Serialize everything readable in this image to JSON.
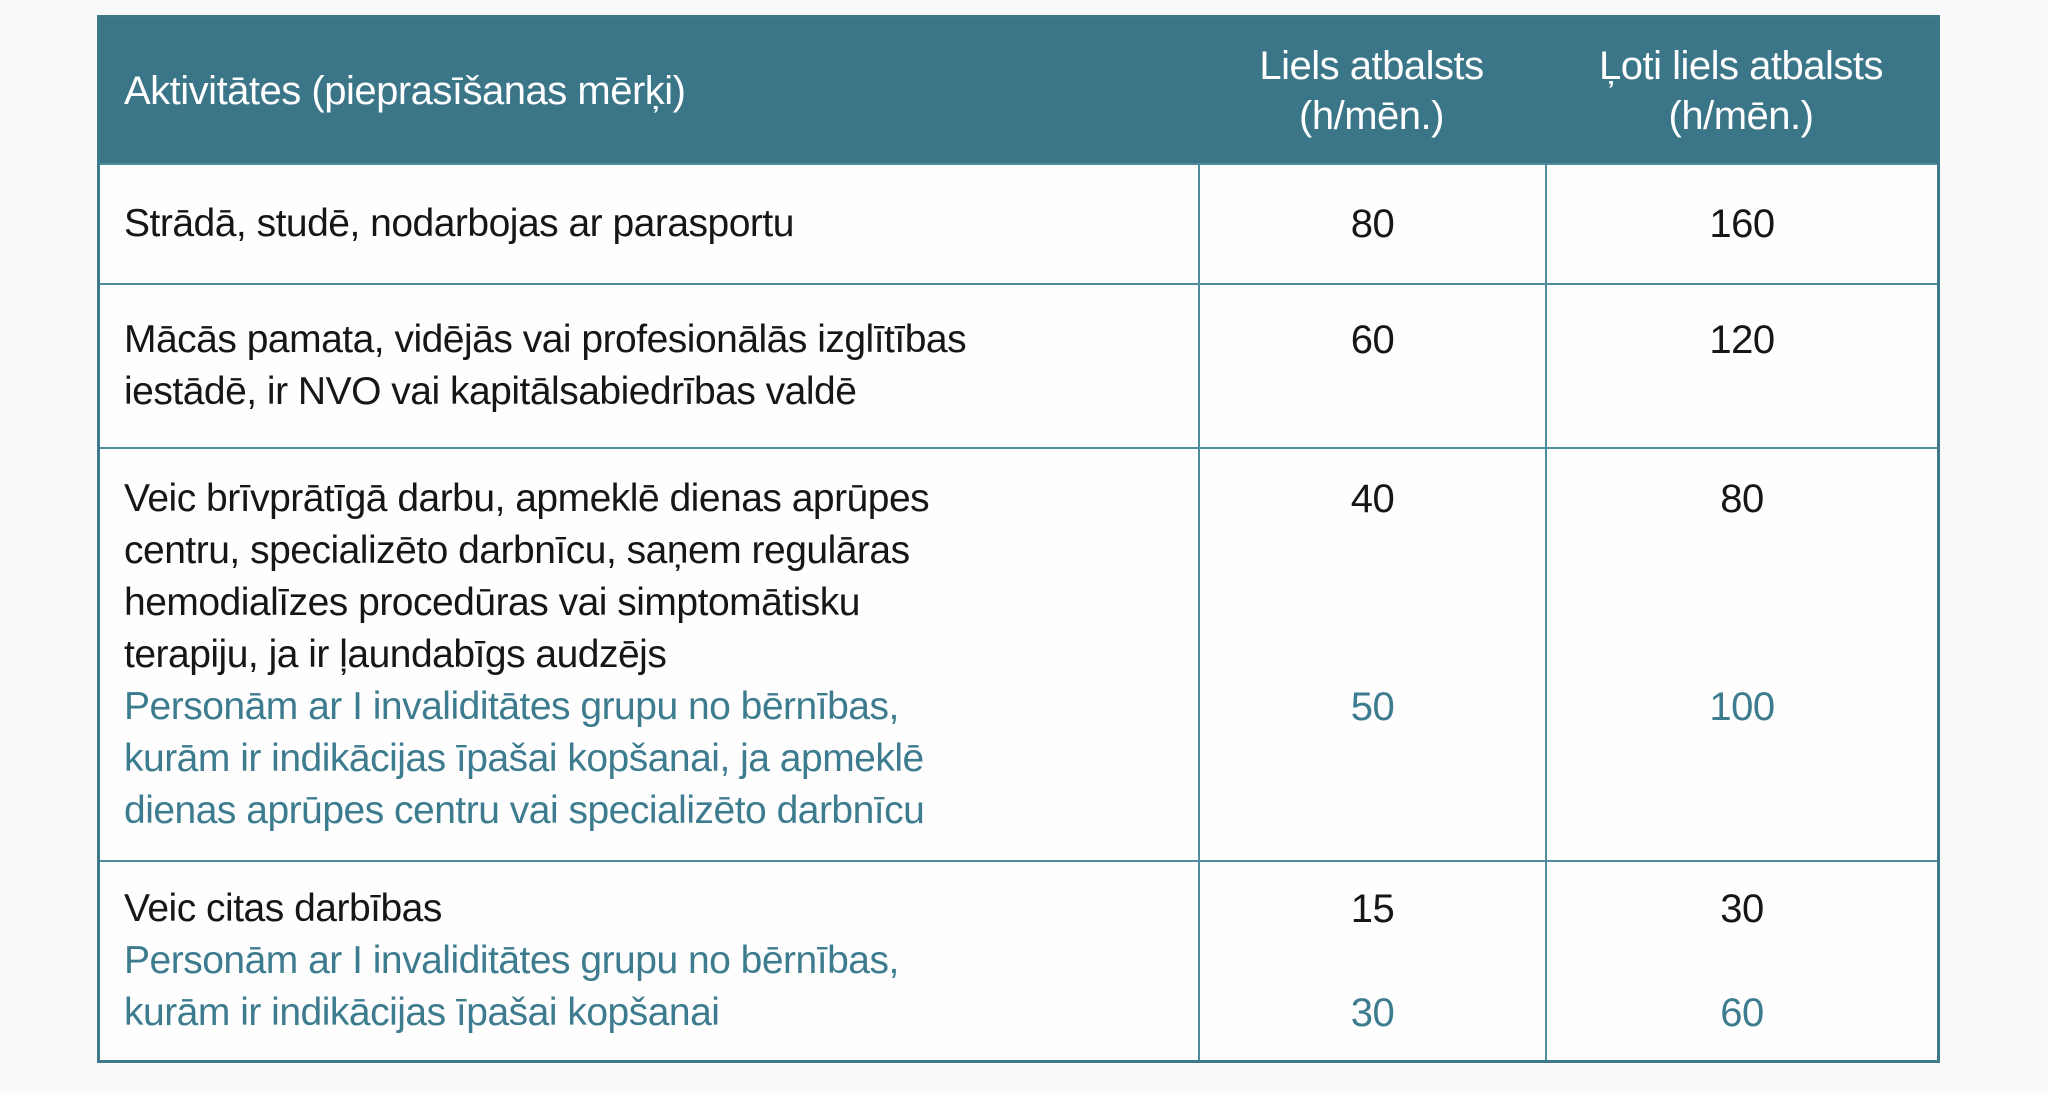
{
  "table": {
    "header": {
      "activity_label": "Aktivitātes (pieprasīšanas mērķi)",
      "col_liels_lines": [
        "Liels atbalsts",
        "(h/mēn.)"
      ],
      "col_loti_lines": [
        "Ļoti liels atbalsts",
        "(h/mēn.)"
      ]
    },
    "rows": [
      {
        "activity_lines": [
          "Strādā, studē, nodarbojas ar parasportu"
        ],
        "activity_note_lines": [],
        "liels_values": [
          {
            "value": "80",
            "line": 0,
            "note": false
          }
        ],
        "loti_values": [
          {
            "value": "160",
            "line": 0,
            "note": false
          }
        ]
      },
      {
        "activity_lines": [
          "Mācās pamata, vidējās vai profesionālās izglītības",
          "iestādē, ir NVO vai kapitālsabiedrības valdē"
        ],
        "activity_note_lines": [],
        "liels_values": [
          {
            "value": "60",
            "line": 0,
            "note": false
          }
        ],
        "loti_values": [
          {
            "value": "120",
            "line": 0,
            "note": false
          }
        ]
      },
      {
        "activity_lines": [
          "Veic brīvprātīgā darbu, apmeklē dienas aprūpes",
          "centru, specializēto darbnīcu, saņem regulāras",
          "hemodialīzes procedūras vai simptomātisku",
          "terapiju, ja ir ļaundabīgs audzējs"
        ],
        "activity_note_lines": [
          "Personām ar I invaliditātes grupu no bērnības,",
          "kurām ir indikācijas īpašai kopšanai, ja apmeklē",
          "dienas aprūpes centru vai specializēto darbnīcu"
        ],
        "liels_values": [
          {
            "value": "40",
            "line": 0,
            "note": false
          },
          {
            "value": "50",
            "line": 4,
            "note": true
          }
        ],
        "loti_values": [
          {
            "value": "80",
            "line": 0,
            "note": false
          },
          {
            "value": "100",
            "line": 4,
            "note": true
          }
        ]
      },
      {
        "activity_lines": [
          "Veic citas darbības"
        ],
        "activity_note_lines": [
          "Personām ar I invaliditātes grupu no bērnības,",
          "kurām ir indikācijas īpašai kopšanai"
        ],
        "liels_values": [
          {
            "value": "15",
            "line": 0,
            "note": false
          },
          {
            "value": "30",
            "line": 2,
            "note": true
          }
        ],
        "loti_values": [
          {
            "value": "30",
            "line": 0,
            "note": false
          },
          {
            "value": "60",
            "line": 2,
            "note": true
          }
        ]
      }
    ],
    "colors": {
      "header_bg": "#3a7588",
      "header_text": "#ffffff",
      "body_text": "#161616",
      "note_text": "#3d7b8f",
      "grid_line": "#4e8c9e",
      "outer_border": "#3f7a8c",
      "cell_bg": "#fefefe",
      "page_bg": "#fbfafa"
    }
  }
}
